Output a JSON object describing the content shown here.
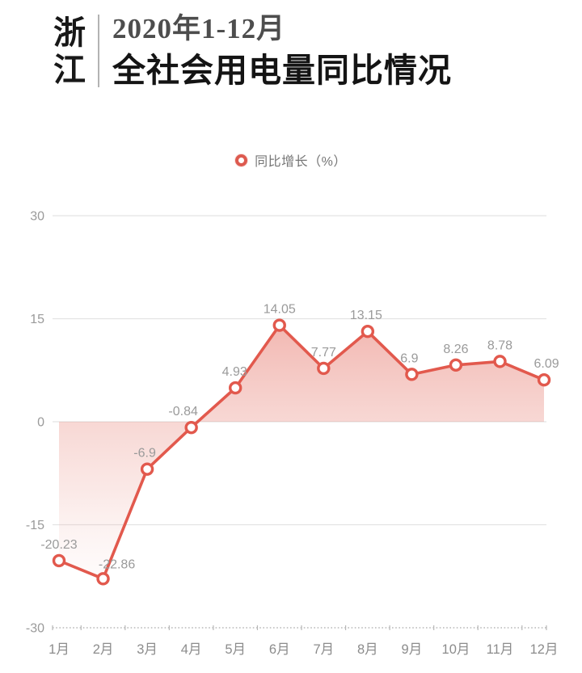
{
  "header": {
    "brand_chars": [
      "浙",
      "江"
    ],
    "title_line1": "2020年1-12月",
    "title_line2": "全社会用电量同比情况"
  },
  "legend": {
    "label": "同比增长（%）"
  },
  "chart_data": {
    "type": "line",
    "title": "浙江2020年1-12月全社会用电量同比情况",
    "categories": [
      "1月",
      "2月",
      "3月",
      "4月",
      "5月",
      "6月",
      "7月",
      "8月",
      "9月",
      "10月",
      "11月",
      "12月"
    ],
    "series": [
      {
        "name": "同比增长（%）",
        "values": [
          -20.23,
          -22.86,
          -6.9,
          -0.84,
          4.93,
          14.05,
          7.77,
          13.15,
          6.9,
          8.26,
          8.78,
          6.09
        ]
      }
    ],
    "point_labels": [
      "-20.23",
      "-22.86",
      "-6.9",
      "-0.84",
      "4.93",
      "14.05",
      "7.77",
      "13.15",
      "6.9",
      "8.26",
      "8.78",
      "6.09"
    ],
    "xlabel": "",
    "ylabel": "同比增长（%）",
    "ylim": [
      -30,
      30
    ],
    "yticks": [
      "30",
      "15",
      "0",
      "-15",
      "-30"
    ],
    "grid": true,
    "area_fill": true,
    "legend_position": "top-center",
    "colors": {
      "line": "#e2594d",
      "marker_fill": "#ffffff",
      "area_gradient_top": "#e25f52",
      "area_gradient_bottom": "#ffffff",
      "gridline": "#e3e3e3",
      "axis_dotted": "#b8b8b8",
      "tick_label": "#9a9a9a",
      "data_label": "#9a9a9a",
      "legend_text": "#757575"
    }
  }
}
